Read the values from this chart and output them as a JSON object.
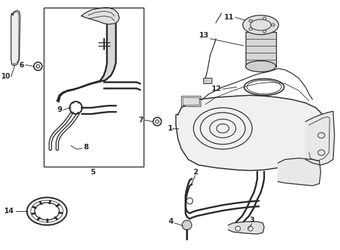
{
  "bg_color": "#ffffff",
  "line_color": "#2a2a2a",
  "fig_width": 4.9,
  "fig_height": 3.6,
  "dpi": 100,
  "font_size": 7.5
}
